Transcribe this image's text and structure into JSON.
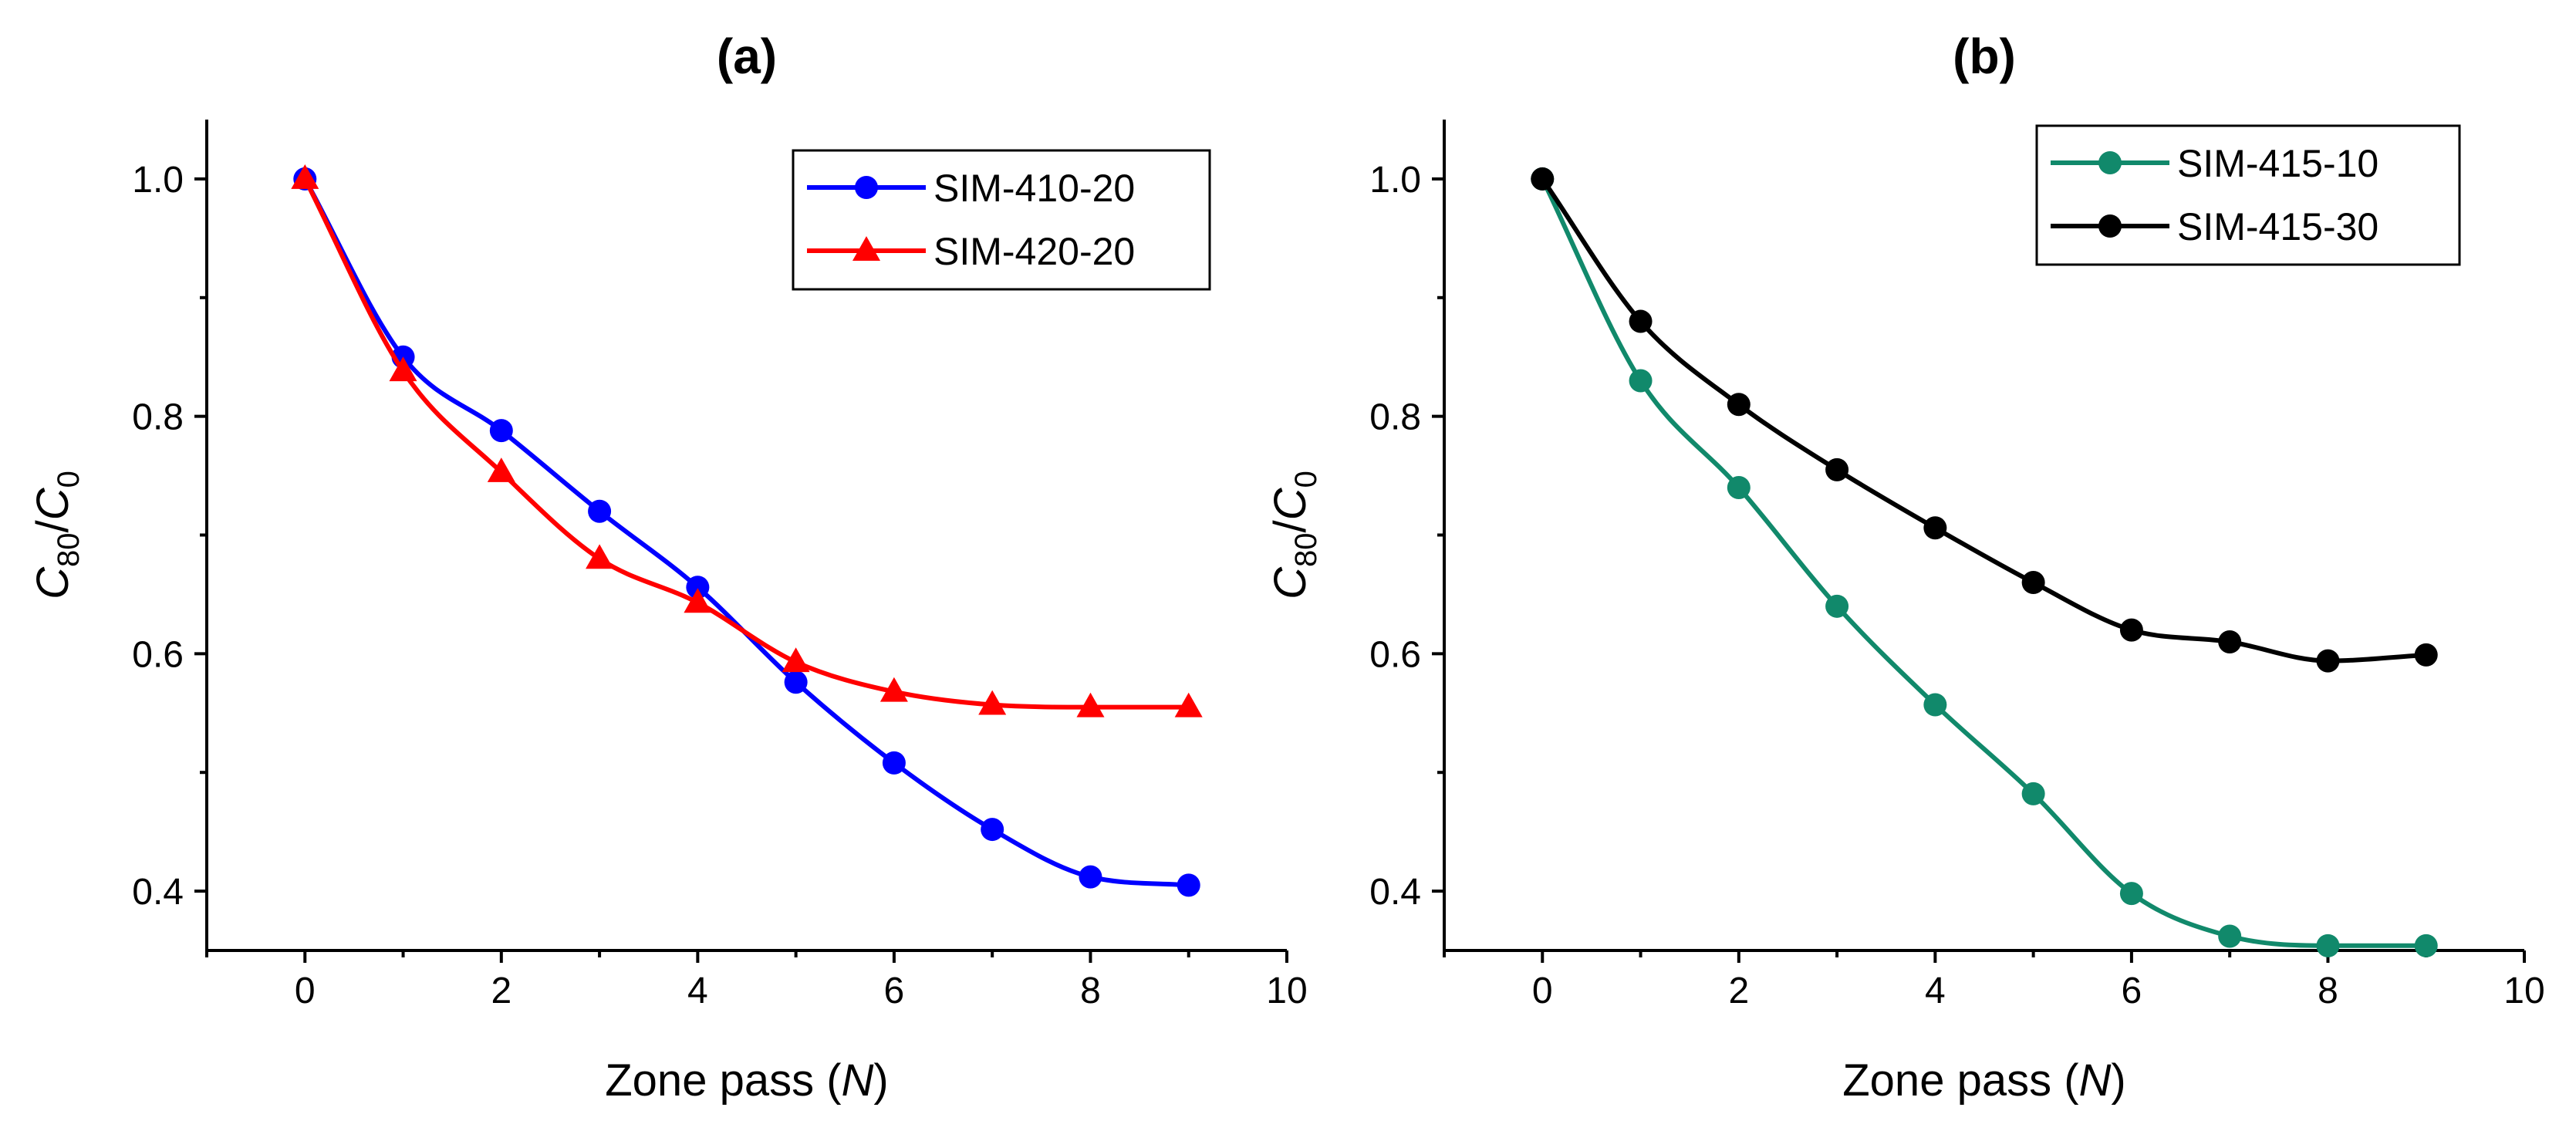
{
  "chart_data": [
    {
      "type": "line",
      "panel_label": "(a)",
      "xlabel_prefix": "Zone pass (",
      "xlabel_var": "N",
      "xlabel_suffix": ")",
      "ylabel_var": "C",
      "ylabel_sub": "80",
      "ylabel_slash": "/",
      "ylabel_var2": "C",
      "ylabel_sub2": "0",
      "xlim": [
        -1,
        10
      ],
      "ylim": [
        0.35,
        1.05
      ],
      "xticks": [
        0,
        2,
        4,
        6,
        8,
        10
      ],
      "xtick_labels": [
        "0",
        "2",
        "4",
        "6",
        "8",
        "10"
      ],
      "yticks": [
        0.4,
        0.6,
        0.8,
        1.0
      ],
      "ytick_labels": [
        "0.4",
        "0.6",
        "0.8",
        "1.0"
      ],
      "legend_position": "top-right",
      "series": [
        {
          "name": "SIM-410-20",
          "color": "#0000ff",
          "marker": "circle",
          "x": [
            0,
            1,
            2,
            3,
            4,
            5,
            6,
            7,
            8,
            9
          ],
          "values": [
            1.0,
            0.85,
            0.788,
            0.72,
            0.656,
            0.576,
            0.508,
            0.452,
            0.412,
            0.405
          ]
        },
        {
          "name": "SIM-420-20",
          "color": "#ff0000",
          "marker": "triangle",
          "x": [
            0,
            1,
            2,
            3,
            4,
            5,
            6,
            7,
            8,
            9
          ],
          "values": [
            1.0,
            0.838,
            0.753,
            0.68,
            0.643,
            0.593,
            0.568,
            0.557,
            0.555,
            0.555
          ]
        }
      ]
    },
    {
      "type": "line",
      "panel_label": "(b)",
      "xlabel_prefix": "Zone pass (",
      "xlabel_var": "N",
      "xlabel_suffix": ")",
      "ylabel_var": "C",
      "ylabel_sub": "80",
      "ylabel_slash": "/",
      "ylabel_var2": "C",
      "ylabel_sub2": "0",
      "xlim": [
        -1,
        10
      ],
      "ylim": [
        0.35,
        1.05
      ],
      "xticks": [
        0,
        2,
        4,
        6,
        8,
        10
      ],
      "xtick_labels": [
        "0",
        "2",
        "4",
        "6",
        "8",
        "10"
      ],
      "yticks": [
        0.4,
        0.6,
        0.8,
        1.0
      ],
      "ytick_labels": [
        "0.4",
        "0.6",
        "0.8",
        "1.0"
      ],
      "legend_position": "top-right",
      "series": [
        {
          "name": "SIM-415-10",
          "color": "#11896b",
          "marker": "circle",
          "x": [
            0,
            1,
            2,
            3,
            4,
            5,
            6,
            7,
            8,
            9
          ],
          "values": [
            1.0,
            0.83,
            0.74,
            0.64,
            0.557,
            0.482,
            0.398,
            0.362,
            0.354,
            0.354
          ]
        },
        {
          "name": "SIM-415-30",
          "color": "#000000",
          "marker": "circle",
          "x": [
            0,
            1,
            2,
            3,
            4,
            5,
            6,
            7,
            8,
            9
          ],
          "values": [
            1.0,
            0.88,
            0.81,
            0.755,
            0.706,
            0.66,
            0.62,
            0.61,
            0.594,
            0.599
          ]
        }
      ]
    }
  ]
}
